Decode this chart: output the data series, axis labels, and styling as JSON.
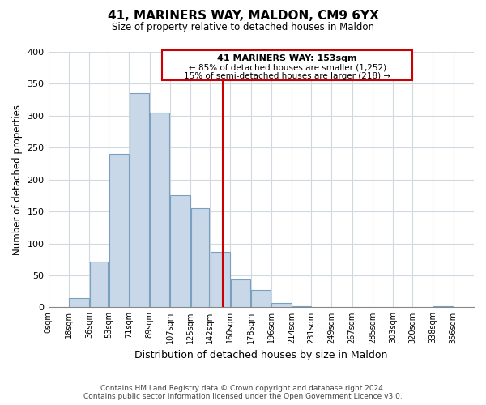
{
  "title": "41, MARINERS WAY, MALDON, CM9 6YX",
  "subtitle": "Size of property relative to detached houses in Maldon",
  "xlabel": "Distribution of detached houses by size in Maldon",
  "ylabel": "Number of detached properties",
  "bar_left_edges": [
    0,
    18,
    36,
    53,
    71,
    89,
    107,
    125,
    142,
    160,
    178,
    196,
    214,
    231,
    249,
    267,
    285,
    303,
    320,
    338
  ],
  "bar_heights": [
    0,
    15,
    72,
    240,
    335,
    305,
    175,
    155,
    87,
    44,
    27,
    7,
    2,
    0,
    0,
    0,
    0,
    0,
    0,
    2
  ],
  "bar_widths": [
    18,
    18,
    17,
    18,
    18,
    18,
    18,
    17,
    18,
    18,
    18,
    18,
    17,
    18,
    18,
    18,
    18,
    17,
    18,
    18
  ],
  "bar_color": "#c8d8e8",
  "bar_edgecolor": "#7aa0c0",
  "tick_labels": [
    "0sqm",
    "18sqm",
    "36sqm",
    "53sqm",
    "71sqm",
    "89sqm",
    "107sqm",
    "125sqm",
    "142sqm",
    "160sqm",
    "178sqm",
    "196sqm",
    "214sqm",
    "231sqm",
    "249sqm",
    "267sqm",
    "285sqm",
    "303sqm",
    "320sqm",
    "338sqm",
    "356sqm"
  ],
  "tick_positions": [
    0,
    18,
    36,
    53,
    71,
    89,
    107,
    125,
    142,
    160,
    178,
    196,
    214,
    231,
    249,
    267,
    285,
    303,
    320,
    338,
    356
  ],
  "property_value": 153,
  "vline_color": "#cc0000",
  "annotation_box_edgecolor": "#cc0000",
  "annotation_title": "41 MARINERS WAY: 153sqm",
  "annotation_line1": "← 85% of detached houses are smaller (1,252)",
  "annotation_line2": "15% of semi-detached houses are larger (218) →",
  "ylim": [
    0,
    400
  ],
  "xlim": [
    0,
    374
  ],
  "yticks": [
    0,
    50,
    100,
    150,
    200,
    250,
    300,
    350,
    400
  ],
  "footnote1": "Contains HM Land Registry data © Crown copyright and database right 2024.",
  "footnote2": "Contains public sector information licensed under the Open Government Licence v3.0.",
  "background_color": "#ffffff",
  "grid_color": "#d0d8e0"
}
